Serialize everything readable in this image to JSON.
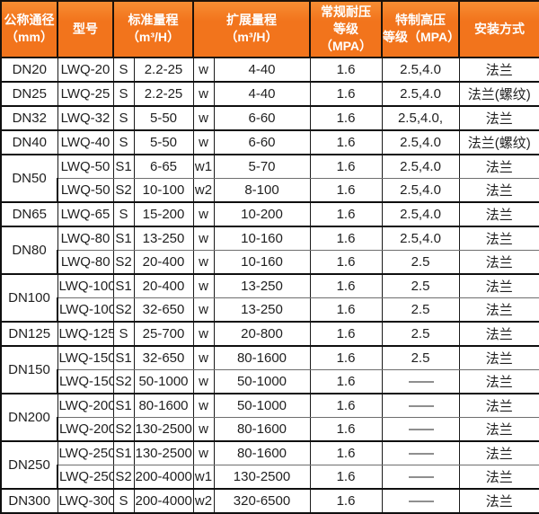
{
  "table": {
    "header": {
      "dn": "公称通径\n（mm）",
      "model": "型号",
      "std_range": "标准量程\n（m³/H）",
      "ext_range": "扩展量程\n（m³/H）",
      "normal_pressure": "常规耐压\n等级（MPA）",
      "high_pressure": "特制高压\n等级（MPA）",
      "install": "安装方式"
    },
    "groups": [
      {
        "dn": "DN20",
        "rows": [
          {
            "model": "LWQ-20",
            "s_grade": "S",
            "std": "2.2-25",
            "w_grade": "w",
            "ext": "4-40",
            "normal": "1.6",
            "high": "2.5,4.0",
            "install": "法兰"
          }
        ]
      },
      {
        "dn": "DN25",
        "rows": [
          {
            "model": "LWQ-25",
            "s_grade": "S",
            "std": "2.2-25",
            "w_grade": "w",
            "ext": "4-40",
            "normal": "1.6",
            "high": "2.5,4.0",
            "install": "法兰(螺纹)"
          }
        ]
      },
      {
        "dn": "DN32",
        "rows": [
          {
            "model": "LWQ-32",
            "s_grade": "S",
            "std": "5-50",
            "w_grade": "w",
            "ext": "6-60",
            "normal": "1.6",
            "high": "2.5,4.0,",
            "install": "法兰"
          }
        ]
      },
      {
        "dn": "DN40",
        "rows": [
          {
            "model": "LWQ-40",
            "s_grade": "S",
            "std": "5-50",
            "w_grade": "w",
            "ext": "6-60",
            "normal": "1.6",
            "high": "2.5,4.0",
            "install": "法兰(螺纹)"
          }
        ]
      },
      {
        "dn": "DN50",
        "rows": [
          {
            "model": "LWQ-50",
            "s_grade": "S1",
            "std": "6-65",
            "w_grade": "w1",
            "ext": "5-70",
            "normal": "1.6",
            "high": "2.5,4.0",
            "install": "法兰"
          },
          {
            "model": "LWQ-50",
            "s_grade": "S2",
            "std": "10-100",
            "w_grade": "w2",
            "ext": "8-100",
            "normal": "1.6",
            "high": "2.5,4.0",
            "install": "法兰"
          }
        ]
      },
      {
        "dn": "DN65",
        "rows": [
          {
            "model": "LWQ-65",
            "s_grade": "S",
            "std": "15-200",
            "w_grade": "w",
            "ext": "10-200",
            "normal": "1.6",
            "high": "2.5,4.0",
            "install": "法兰"
          }
        ]
      },
      {
        "dn": "DN80",
        "rows": [
          {
            "model": "LWQ-80",
            "s_grade": "S1",
            "std": "13-250",
            "w_grade": "w",
            "ext": "10-160",
            "normal": "1.6",
            "high": "2.5,4.0",
            "install": "法兰"
          },
          {
            "model": "LWQ-80",
            "s_grade": "S2",
            "std": "20-400",
            "w_grade": "w",
            "ext": "10-160",
            "normal": "1.6",
            "high": "2.5",
            "install": "法兰"
          }
        ]
      },
      {
        "dn": "DN100",
        "rows": [
          {
            "model": "LWQ-100",
            "s_grade": "S1",
            "std": "20-400",
            "w_grade": "w",
            "ext": "13-250",
            "normal": "1.6",
            "high": "2.5",
            "install": "法兰"
          },
          {
            "model": "LWQ-100",
            "s_grade": "S2",
            "std": "32-650",
            "w_grade": "w",
            "ext": "13-250",
            "normal": "1.6",
            "high": "2.5",
            "install": "法兰"
          }
        ]
      },
      {
        "dn": "DN125",
        "rows": [
          {
            "model": "LWQ-125",
            "s_grade": "S",
            "std": "25-700",
            "w_grade": "w",
            "ext": "20-800",
            "normal": "1.6",
            "high": "2.5",
            "install": "法兰"
          }
        ]
      },
      {
        "dn": "DN150",
        "rows": [
          {
            "model": "LWQ-150",
            "s_grade": "S1",
            "std": "32-650",
            "w_grade": "w",
            "ext": "80-1600",
            "normal": "1.6",
            "high": "2.5",
            "install": "法兰"
          },
          {
            "model": "LWQ-150",
            "s_grade": "S2",
            "std": "50-1000",
            "w_grade": "w",
            "ext": "50-1000",
            "normal": "1.6",
            "high": "——",
            "install": "法兰"
          }
        ]
      },
      {
        "dn": "DN200",
        "rows": [
          {
            "model": "LWQ-200",
            "s_grade": "S1",
            "std": "80-1600",
            "w_grade": "w",
            "ext": "50-1000",
            "normal": "1.6",
            "high": "——",
            "install": "法兰"
          },
          {
            "model": "LWQ-200",
            "s_grade": "S2",
            "std": "130-2500",
            "w_grade": "w",
            "ext": "80-1600",
            "normal": "1.6",
            "high": "——",
            "install": "法兰"
          }
        ]
      },
      {
        "dn": "DN250",
        "rows": [
          {
            "model": "LWQ-250",
            "s_grade": "S1",
            "std": "130-2500",
            "w_grade": "w",
            "ext": "80-1600",
            "normal": "1.6",
            "high": "——",
            "install": "法兰"
          },
          {
            "model": "LWQ-250",
            "s_grade": "S2",
            "std": "200-4000",
            "w_grade": "w1",
            "ext": "130-2500",
            "normal": "1.6",
            "high": "——",
            "install": "法兰"
          }
        ]
      },
      {
        "dn": "DN300",
        "rows": [
          {
            "model": "LWQ-300",
            "s_grade": "S",
            "std": "200-4000",
            "w_grade": "w2",
            "ext": "320-6500",
            "normal": "1.6",
            "high": "——",
            "install": "法兰"
          }
        ]
      }
    ],
    "colors": {
      "header_bg": "#f2741c",
      "header_bg_light": "#f78d33",
      "header_text": "#ffffff",
      "outer_border": "#0f0f0f",
      "inner_row_border": "#6e6e6e",
      "body_text": "#1f1f1f",
      "background": "#ffffff"
    }
  }
}
